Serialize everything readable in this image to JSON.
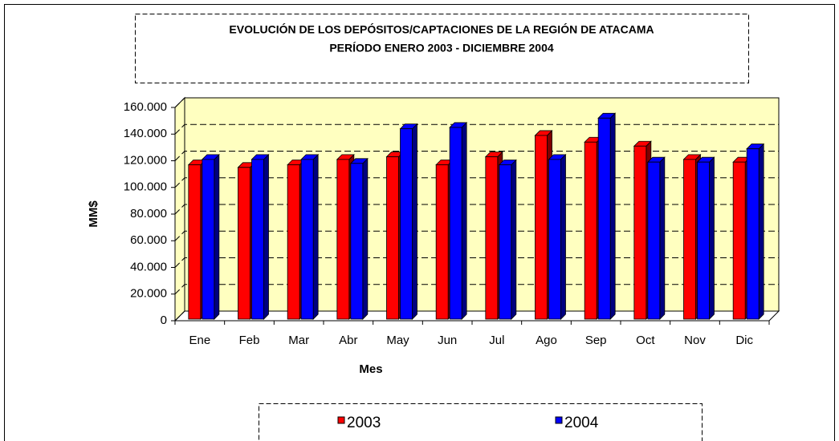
{
  "chart_data": {
    "type": "bar3d",
    "title": "EVOLUCIÓN DE LOS DEPÓSITOS/CAPTACIONES DE LA REGIÓN DE ATACAMA",
    "subtitle": "PERÍODO ENERO 2003 - DICIEMBRE 2004",
    "x_label": "Mes",
    "y_label": "MM$",
    "categories": [
      "Ene",
      "Feb",
      "Mar",
      "Abr",
      "May",
      "Jun",
      "Jul",
      "Ago",
      "Sep",
      "Oct",
      "Nov",
      "Dic"
    ],
    "series": [
      {
        "name": "2003",
        "color": "#ff0000",
        "values": [
          117000,
          115000,
          117000,
          121000,
          123000,
          117000,
          123000,
          139000,
          134000,
          131000,
          121000,
          119000
        ]
      },
      {
        "name": "2004",
        "color": "#0000ff",
        "values": [
          121000,
          121000,
          121000,
          118000,
          144000,
          145000,
          117000,
          121000,
          152000,
          119000,
          119000,
          129000
        ]
      }
    ],
    "ylim": [
      0,
      160000
    ],
    "yticks": [
      0,
      {
        "value": 20000,
        "label": "20.000"
      },
      {
        "value": 40000,
        "label": "40.000"
      },
      {
        "value": 60000,
        "label": "60.000"
      },
      {
        "value": 80000,
        "label": "80.000"
      },
      {
        "value": 100000,
        "label": "100.000"
      },
      {
        "value": 120000,
        "label": "120.000"
      },
      {
        "value": 140000,
        "label": "140.000"
      },
      {
        "value": 160000,
        "label": "160.000"
      }
    ],
    "grid": true,
    "legend": "bottom"
  }
}
